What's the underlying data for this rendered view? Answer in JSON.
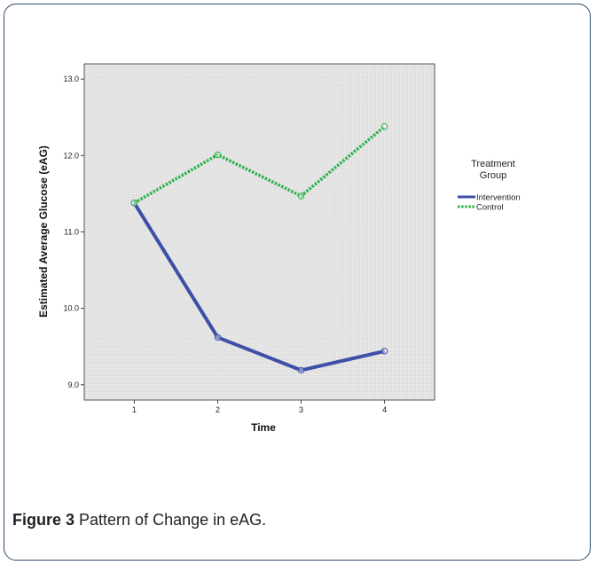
{
  "caption": {
    "label": "Figure 3",
    "text": " Pattern of Change in eAG."
  },
  "chart_data": {
    "type": "line",
    "title": "",
    "xlabel": "Time",
    "ylabel": "Estimated Average Glucose (eAG)",
    "x": [
      1,
      2,
      3,
      4
    ],
    "x_tick_labels": [
      "1",
      "2",
      "3",
      "4"
    ],
    "xlim": [
      0.4,
      4.6
    ],
    "ylim": [
      8.8,
      13.2
    ],
    "y_ticks": [
      9.0,
      10.0,
      11.0,
      12.0,
      13.0
    ],
    "y_tick_labels": [
      "9.0",
      "10.0",
      "11.0",
      "12.0",
      "13.0"
    ],
    "legend_title": "Treatment Group",
    "legend_title_lines": [
      "Treatment",
      "Group"
    ],
    "legend_position": "right",
    "grid": false,
    "series": [
      {
        "name": "Intervention",
        "values": [
          11.38,
          9.62,
          9.19,
          9.44
        ],
        "color": "#3f4fa8",
        "style": "solid"
      },
      {
        "name": "Control",
        "values": [
          11.38,
          12.01,
          11.47,
          12.38
        ],
        "color": "#2db34a",
        "style": "dotted"
      }
    ]
  }
}
